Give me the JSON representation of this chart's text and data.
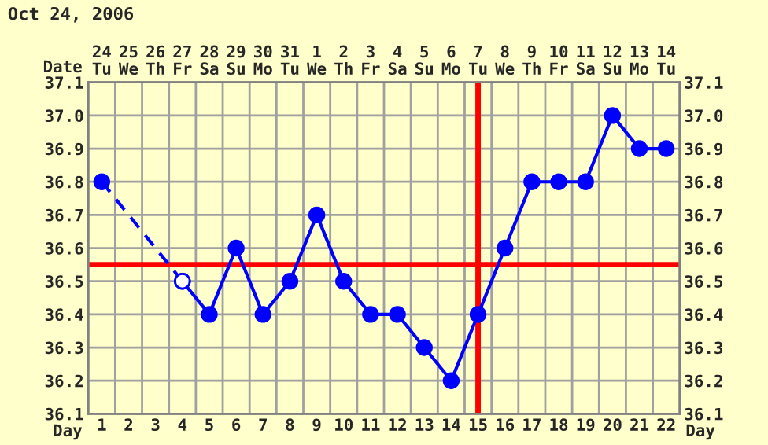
{
  "chart_data": {
    "type": "line",
    "title": "Oct 24, 2006",
    "xlabel": "Day",
    "x2label": "Date",
    "xlim": [
      0.5,
      22.5
    ],
    "xticks": [
      1,
      2,
      3,
      4,
      5,
      6,
      7,
      8,
      9,
      10,
      11,
      12,
      13,
      14,
      15,
      16,
      17,
      18,
      19,
      20,
      21,
      22
    ],
    "x2lim": [
      "2006-10-23T12:00",
      "2006-11-14T12:00"
    ],
    "x2ticks": [
      {
        "value": "2006-10-24",
        "label": "24\nTu"
      },
      {
        "value": "2006-10-25",
        "label": "25\nWe"
      },
      {
        "value": "2006-10-26",
        "label": "26\nTh"
      },
      {
        "value": "2006-10-27",
        "label": "27\nFr"
      },
      {
        "value": "2006-10-28",
        "label": "28\nSa"
      },
      {
        "value": "2006-10-29",
        "label": "29\nSu"
      },
      {
        "value": "2006-10-30",
        "label": "30\nMo"
      },
      {
        "value": "2006-10-31",
        "label": "31\nTu"
      },
      {
        "value": "2006-11-01",
        "label": "1\nWe"
      },
      {
        "value": "2006-11-02",
        "label": "2\nTh"
      },
      {
        "value": "2006-11-03",
        "label": "3\nFr"
      },
      {
        "value": "2006-11-04",
        "label": "4\nSa"
      },
      {
        "value": "2006-11-05",
        "label": "5\nSu"
      },
      {
        "value": "2006-11-06",
        "label": "6\nMo"
      },
      {
        "value": "2006-11-07",
        "label": "7\nTu"
      },
      {
        "value": "2006-11-08",
        "label": "8\nWe"
      },
      {
        "value": "2006-11-09",
        "label": "9\nTh"
      },
      {
        "value": "2006-11-10",
        "label": "10\nFr"
      },
      {
        "value": "2006-11-11",
        "label": "11\nSa"
      },
      {
        "value": "2006-11-12",
        "label": "12\nSu"
      },
      {
        "value": "2006-11-13",
        "label": "13\nMo"
      },
      {
        "value": "2006-11-14",
        "label": "14\nTu"
      }
    ],
    "ylim": [
      36.1,
      37.1
    ],
    "yticks": [
      36.1,
      36.2,
      36.3,
      36.4,
      36.5,
      36.6,
      36.7,
      36.8,
      36.9,
      {
        "value": 37,
        "label": "37.0"
      },
      37.1
    ],
    "y2lim": [
      36.1,
      37.1
    ],
    "y2ticks": [
      36.1,
      36.2,
      36.3,
      36.4,
      36.5,
      36.6,
      36.7,
      36.8,
      36.9,
      {
        "value": 37,
        "label": "37.0"
      },
      37.1
    ],
    "grid": true,
    "marker": "circle",
    "series": [
      {
        "color": "#0000ff",
        "line_style": "dashed",
        "x": [
          1,
          4
        ],
        "values": [
          36.8,
          36.5
        ],
        "colors": [
          "#0000ff",
          "#ffffff"
        ]
      },
      {
        "color": "#0000ff",
        "line_style": "solid",
        "x": [
          4,
          5,
          6,
          7,
          8,
          9,
          10,
          11,
          12,
          13,
          14,
          15,
          16,
          17,
          18,
          19,
          20,
          21,
          22
        ],
        "values": [
          36.5,
          36.4,
          36.6,
          36.4,
          36.5,
          36.7,
          36.5,
          36.4,
          36.4,
          36.3,
          36.2,
          36.4,
          36.6,
          36.8,
          36.8,
          36.8,
          37.0,
          36.9,
          36.9
        ],
        "colors": [
          "#ffffff",
          "#0000ff",
          "#0000ff",
          "#0000ff",
          "#0000ff",
          "#0000ff",
          "#0000ff",
          "#0000ff",
          "#0000ff",
          "#0000ff",
          "#0000ff",
          "#0000ff",
          "#0000ff",
          "#0000ff",
          "#0000ff",
          "#0000ff",
          "#0000ff",
          "#0000ff",
          "#0000ff"
        ]
      }
    ],
    "ref_lines": [
      {
        "axis": "y",
        "value": 36.55,
        "color": "#ff0000"
      },
      {
        "axis": "x",
        "value": 15,
        "color": "#ff0000"
      }
    ]
  }
}
